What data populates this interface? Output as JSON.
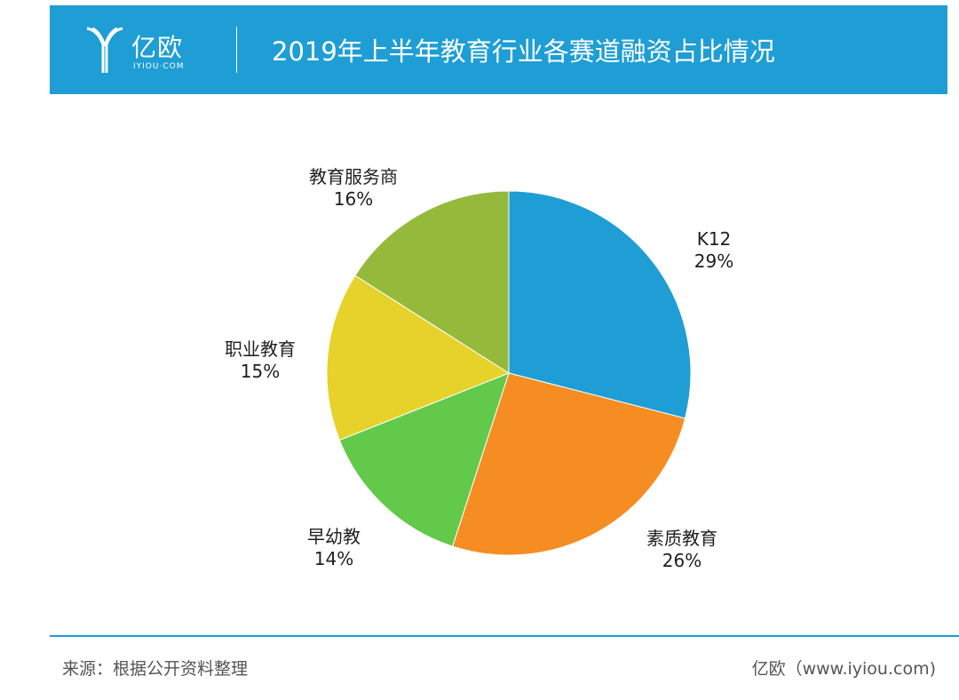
{
  "header": {
    "logo_text": "亿欧",
    "logo_sub": "IYIOU·COM",
    "title": "2019年上半年教育行业各赛道融资占比情况"
  },
  "chart_data": {
    "type": "pie",
    "title": "2019年上半年教育行业各赛道融资占比情况",
    "slices": [
      {
        "label": "K12",
        "value": 29,
        "display": "29%",
        "color": "#1e9ed4"
      },
      {
        "label": "素质教育",
        "value": 26,
        "display": "26%",
        "color": "#f58d22"
      },
      {
        "label": "早幼教",
        "value": 14,
        "display": "14%",
        "color": "#62c94a"
      },
      {
        "label": "职业教育",
        "value": 15,
        "display": "15%",
        "color": "#e6d22b"
      },
      {
        "label": "教育服务商",
        "value": 16,
        "display": "16%",
        "color": "#95b93a"
      }
    ]
  },
  "footer": {
    "source": "来源：根据公开资料整理",
    "credit": "亿欧（www.iyiou.com)"
  }
}
